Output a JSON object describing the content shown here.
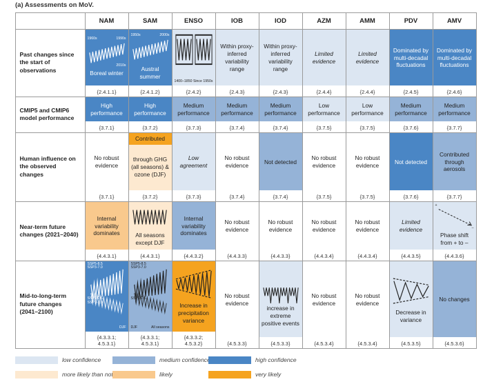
{
  "title": "(a) Assessments on MoV.",
  "columns": [
    "NAM",
    "SAM",
    "ENSO",
    "IOB",
    "IOD",
    "AZM",
    "AMM",
    "PDV",
    "AMV"
  ],
  "rows": [
    {
      "label": "Past changes since the start of observations",
      "cells": [
        {
          "text": "Boreal winter",
          "color": "#4a86c5",
          "sketch": "trend-up",
          "sketch_labels": [
            [
              "1960s"
            ],
            [
              "1990s"
            ],
            [
              "2010s"
            ]
          ],
          "ref": "{2.4.1.1}"
        },
        {
          "text": "Austral summer",
          "color": "#4a86c5",
          "sketch": "trend-up",
          "sketch_labels": [
            [
              "1950s"
            ],
            [
              "2000s"
            ]
          ],
          "ref": "{2.4.1.2}"
        },
        {
          "color": "#dce6f2",
          "sketch": "box",
          "sketch_labels": [
            [
              "1400–1850"
            ],
            [
              "Since 1950s"
            ]
          ],
          "ref": "{2.4.2}"
        },
        {
          "text": "Within proxy-inferred variability range",
          "color": "#dce6f2",
          "ref": "{2.4.3}"
        },
        {
          "text": "Within proxy-inferred variability range",
          "color": "#dce6f2",
          "ref": "{2.4.3}"
        },
        {
          "text": "Limited evidence",
          "italic": true,
          "color": "#dce6f2",
          "ref": "{2.4.4}"
        },
        {
          "text": "Limited evidence",
          "italic": true,
          "color": "#dce6f2",
          "ref": "{2.4.4}"
        },
        {
          "text": "Dominated by multi-decadal fluctuations",
          "color": "#4a86c5",
          "ref": "{2.4.5}"
        },
        {
          "text": "Dominated by multi-decadal fluctuations",
          "color": "#4a86c5",
          "ref": "{2.4.6}"
        }
      ]
    },
    {
      "label": "CMIP5 and CMIP6 model performance",
      "cells": [
        {
          "text": "High performance",
          "color": "#4a86c5",
          "ref": "{3.7.1}"
        },
        {
          "text": "High performance",
          "color": "#4a86c5",
          "ref": "{3.7.2}"
        },
        {
          "text": "Medium performance",
          "color": "#95b3d7",
          "ref": "{3.7.3}"
        },
        {
          "text": "Medium performance",
          "color": "#95b3d7",
          "ref": "{3.7.4}"
        },
        {
          "text": "Medium performance",
          "color": "#95b3d7",
          "ref": "{3.7.4}"
        },
        {
          "text": "Low performance",
          "color": "#dce6f2",
          "ref": "{3.7.5}"
        },
        {
          "text": "Low performance",
          "color": "#dce6f2",
          "ref": "{3.7.5}"
        },
        {
          "text": "Medium performance",
          "color": "#95b3d7",
          "ref": "{3.7.6}"
        },
        {
          "text": "Medium performance",
          "color": "#95b3d7",
          "ref": "{3.7.7}"
        }
      ]
    },
    {
      "label": "Human influence on the observed changes",
      "cells": [
        {
          "text": "No robust evidence",
          "ref": "{3.7.1}"
        },
        {
          "text": "Contributed",
          "color": "#f5a31f",
          "sub_text": "through GHG (all seasons) & ozone (DJF)",
          "sub_color": "#fde9d0",
          "ref": "{3.7.2}"
        },
        {
          "text": "Low agreement",
          "italic": true,
          "color": "#dce6f2",
          "ref": "{3.7.3}"
        },
        {
          "text": "No robust evidence",
          "ref": "{3.7.4}"
        },
        {
          "text": "Not detected",
          "color": "#95b3d7",
          "ref": "{3.7.4}"
        },
        {
          "text": "No robust evidence",
          "ref": "{3.7.5}"
        },
        {
          "text": "No robust evidence",
          "ref": "{3.7.5}"
        },
        {
          "text": "Not detected",
          "color": "#4a86c5",
          "ref": "{3.7.6}"
        },
        {
          "text": "Contributed through aerosols",
          "color": "#95b3d7",
          "ref": "{3.7.7}"
        }
      ]
    },
    {
      "label": "Near-term future changes (2021–2040)",
      "cells": [
        {
          "text": "Internal variability dominates",
          "color": "#f9c98d",
          "ref": "{4.4.3.1}"
        },
        {
          "text": "All seasons except DJF",
          "color": "#fde9d0",
          "sketch": "zigzag",
          "ref": "{4.4.3.1}"
        },
        {
          "text": "Internal variability dominates",
          "color": "#95b3d7",
          "ref": "{4.4.3.2}"
        },
        {
          "text": "No robust evidence",
          "ref": "{4.4.3.3}"
        },
        {
          "text": "No robust evidence",
          "ref": "{4.4.3.3}"
        },
        {
          "text": "No robust evidence",
          "ref": "{4.4.3.4}"
        },
        {
          "text": "No robust evidence",
          "ref": "{4.4.3.4}"
        },
        {
          "text": "Limited evidence",
          "italic": true,
          "color": "#dce6f2",
          "ref": "{4.4.3.5}"
        },
        {
          "text": "Phase shift from + to –",
          "color": "#dce6f2",
          "sketch": "phase",
          "sketch_labels": [
            [
              "+"
            ],
            [
              "–"
            ]
          ],
          "ref": "{4.4.3.6}"
        }
      ]
    },
    {
      "label": "Mid-to-long-term future changes (2041–2100)",
      "cells": [
        {
          "color": "#4a86c5",
          "sketch": "fan",
          "sketch_labels": [
            [
              "SSP5-8.5",
              "SSP3-7.0"
            ],
            [
              "DJF"
            ],
            [
              "SSP1-2.6",
              "SSP1-1.9"
            ]
          ],
          "ref": "{4.3.3.1; 4.5.3.1}"
        },
        {
          "color": "#95b3d7",
          "sketch": "fan",
          "sketch_labels": [
            [
              "SSP5-8.5",
              "SSP3-7.0"
            ],
            [
              "All seasons"
            ],
            [
              "SSP1-2.6"
            ],
            [
              "DJF"
            ]
          ],
          "ref": "{4.3.3.1; 4.5.3.1}"
        },
        {
          "text": "Increase in precipitation variance",
          "color": "#f5a31f",
          "sketch": "grow",
          "ref": "{4.3.3.2; 4.5.3.2}"
        },
        {
          "text": "No robust evidence",
          "ref": "{4.5.3.3}"
        },
        {
          "text": "increase in extreme positive events",
          "color": "#dce6f2",
          "sketch": "spikes",
          "ref": "{4.5.3.3}"
        },
        {
          "text": "No robust evidence",
          "ref": "{4.5.3.4}"
        },
        {
          "text": "No robust evidence",
          "ref": "{4.5.3.4}"
        },
        {
          "text": "Decrease in variance",
          "color": "#dce6f2",
          "sketch": "narrow",
          "ref": "{4.5.3.5}"
        },
        {
          "text": "No changes",
          "color": "#95b3d7",
          "ref": "{4.5.3.6}"
        }
      ]
    }
  ],
  "legend": [
    {
      "label": "low confidence",
      "color": "#dce6f2"
    },
    {
      "label": "medium confidence",
      "color": "#95b3d7"
    },
    {
      "label": "high confidence",
      "color": "#4a86c5"
    },
    {
      "label": "more likely than not",
      "color": "#fde9d0"
    },
    {
      "label": "likely",
      "color": "#f9c98d"
    },
    {
      "label": "very likely",
      "color": "#f5a31f"
    }
  ]
}
